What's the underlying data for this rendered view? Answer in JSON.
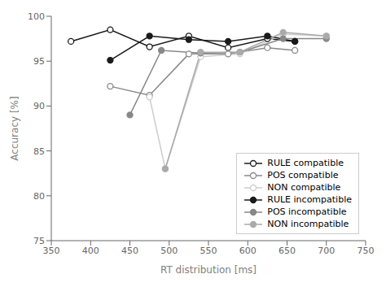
{
  "chart_data": {
    "type": "line",
    "xlabel": "RT distribution [ms]",
    "ylabel": "Accuracy [%]",
    "xlim": [
      350,
      750
    ],
    "ylim": [
      75,
      100
    ],
    "xticks": [
      350,
      400,
      450,
      500,
      550,
      600,
      650,
      700,
      750
    ],
    "yticks": [
      75,
      80,
      85,
      90,
      95,
      100
    ],
    "legend": "lower right",
    "series": [
      {
        "name": "RULE compatible",
        "color": "#1a1a1a",
        "marker": "circle_open",
        "x": [
          375,
          425,
          475,
          525,
          575,
          625,
          660
        ],
        "values": [
          97.2,
          98.5,
          96.6,
          97.8,
          96.5,
          97.5,
          97.2
        ]
      },
      {
        "name": "POS compatible",
        "color": "#888888",
        "marker": "circle_open",
        "x": [
          425,
          475,
          525,
          575,
          625,
          660
        ],
        "values": [
          92.2,
          91.2,
          95.8,
          95.8,
          96.5,
          96.2
        ]
      },
      {
        "name": "NON compatible",
        "color": "#cccccc",
        "marker": "circle_open",
        "x": [
          475,
          495,
          540,
          590,
          645,
          700
        ],
        "values": [
          91.0,
          83.0,
          95.5,
          95.8,
          98.0,
          97.8
        ]
      },
      {
        "name": "RULE incompatible",
        "color": "#1a1a1a",
        "marker": "circle",
        "x": [
          425,
          475,
          525,
          575,
          625,
          660
        ],
        "values": [
          95.1,
          97.8,
          97.4,
          97.2,
          97.8,
          97.2
        ]
      },
      {
        "name": "POS incompatible",
        "color": "#888888",
        "marker": "circle",
        "x": [
          450,
          490,
          540,
          590,
          645,
          700
        ],
        "values": [
          89.0,
          96.2,
          95.9,
          96.0,
          97.5,
          97.5
        ]
      },
      {
        "name": "NON incompatible",
        "color": "#aaaaaa",
        "marker": "circle",
        "x": [
          495,
          540,
          590,
          645,
          700
        ],
        "values": [
          83.0,
          96.0,
          96.0,
          98.2,
          97.8
        ]
      }
    ]
  }
}
